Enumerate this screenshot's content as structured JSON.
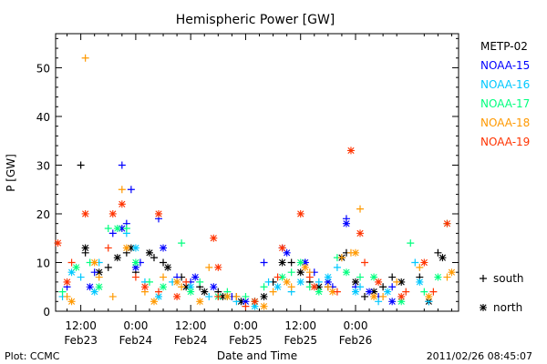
{
  "chart_data": {
    "type": "scatter",
    "title": "Hemispheric Power [GW]",
    "xlabel": "Date and Time",
    "ylabel": "P [GW]",
    "ylim": [
      0,
      57
    ],
    "y_ticks": [
      0,
      10,
      20,
      30,
      40,
      50
    ],
    "x_unit": "hours since Feb23 00:00",
    "xlim": [
      6.5,
      94.5
    ],
    "x_ticks": [
      {
        "x": 12,
        "time": "12:00",
        "date": "Feb23"
      },
      {
        "x": 24,
        "time": "0:00",
        "date": "Feb24"
      },
      {
        "x": 36,
        "time": "12:00",
        "date": "Feb24"
      },
      {
        "x": 48,
        "time": "0:00",
        "date": "Feb25"
      },
      {
        "x": 60,
        "time": "12:00",
        "date": "Feb25"
      },
      {
        "x": 72,
        "time": "0:00",
        "date": "Feb26"
      }
    ],
    "marker_legend": [
      {
        "symbol": "+",
        "label": "south"
      },
      {
        "symbol": "*",
        "label": "north"
      }
    ],
    "series": [
      {
        "name": "METP-02",
        "color": "#000000",
        "south": [
          [
            12,
            30
          ],
          [
            13,
            12
          ],
          [
            18,
            9
          ],
          [
            22,
            12
          ],
          [
            24,
            8
          ],
          [
            28,
            11
          ],
          [
            30,
            10
          ],
          [
            34,
            7
          ],
          [
            38,
            5
          ],
          [
            42,
            4
          ],
          [
            46,
            3
          ],
          [
            50,
            2
          ],
          [
            54,
            6
          ],
          [
            58,
            10
          ],
          [
            62,
            6
          ],
          [
            66,
            5
          ],
          [
            70,
            12
          ],
          [
            74,
            3
          ],
          [
            78,
            5
          ],
          [
            80,
            7
          ],
          [
            86,
            7
          ],
          [
            90,
            12
          ]
        ],
        "north": [
          [
            13,
            13
          ],
          [
            16,
            8
          ],
          [
            20,
            11
          ],
          [
            23,
            13
          ],
          [
            27,
            12
          ],
          [
            31,
            9
          ],
          [
            35,
            5
          ],
          [
            39,
            4
          ],
          [
            43,
            3
          ],
          [
            47,
            2
          ],
          [
            52,
            3
          ],
          [
            56,
            10
          ],
          [
            60,
            8
          ],
          [
            64,
            5
          ],
          [
            69,
            11
          ],
          [
            72,
            6
          ],
          [
            76,
            4
          ],
          [
            82,
            6
          ],
          [
            88,
            2
          ],
          [
            91,
            11
          ]
        ]
      },
      {
        "name": "NOAA-15",
        "color": "#0000ff",
        "south": [
          [
            9,
            5
          ],
          [
            15,
            8
          ],
          [
            19,
            16
          ],
          [
            21,
            30
          ],
          [
            22,
            18
          ],
          [
            23,
            25
          ],
          [
            25,
            10
          ],
          [
            29,
            19
          ],
          [
            33,
            7
          ],
          [
            36,
            6
          ],
          [
            45,
            3
          ],
          [
            52,
            10
          ],
          [
            56,
            13
          ],
          [
            61,
            10
          ],
          [
            63,
            8
          ],
          [
            67,
            5
          ],
          [
            70,
            19
          ],
          [
            72,
            5
          ],
          [
            77,
            3
          ],
          [
            80,
            5
          ]
        ],
        "north": [
          [
            14,
            5
          ],
          [
            21,
            17
          ],
          [
            24,
            9
          ],
          [
            30,
            13
          ],
          [
            37,
            7
          ],
          [
            41,
            5
          ],
          [
            48,
            2
          ],
          [
            57,
            12
          ],
          [
            61,
            10
          ],
          [
            66,
            6
          ],
          [
            70,
            18
          ],
          [
            75,
            4
          ],
          [
            80,
            2
          ]
        ]
      },
      {
        "name": "NOAA-16",
        "color": "#00c8ff",
        "south": [
          [
            8,
            3
          ],
          [
            12,
            7
          ],
          [
            16,
            10
          ],
          [
            22,
            16
          ],
          [
            26,
            6
          ],
          [
            32,
            6
          ],
          [
            40,
            3
          ],
          [
            46,
            2
          ],
          [
            53,
            6
          ],
          [
            58,
            4
          ],
          [
            64,
            6
          ],
          [
            68,
            9
          ],
          [
            73,
            5
          ],
          [
            77,
            2
          ],
          [
            85,
            10
          ],
          [
            88,
            2
          ]
        ],
        "north": [
          [
            10,
            8
          ],
          [
            15,
            4
          ],
          [
            24,
            13
          ],
          [
            29,
            3
          ],
          [
            36,
            5
          ],
          [
            44,
            3
          ],
          [
            50,
            1
          ],
          [
            55,
            5
          ],
          [
            60,
            6
          ],
          [
            66,
            7
          ],
          [
            72,
            4
          ],
          [
            79,
            4
          ],
          [
            86,
            6
          ]
        ]
      },
      {
        "name": "NOAA-17",
        "color": "#00ff7f",
        "south": [
          [
            8,
            4
          ],
          [
            14,
            10
          ],
          [
            18,
            17
          ],
          [
            22,
            17
          ],
          [
            27,
            6
          ],
          [
            34,
            14
          ],
          [
            38,
            6
          ],
          [
            44,
            4
          ],
          [
            48,
            3
          ],
          [
            52,
            5
          ],
          [
            58,
            8
          ],
          [
            62,
            5
          ],
          [
            68,
            11
          ],
          [
            73,
            7
          ],
          [
            84,
            14
          ],
          [
            87,
            4
          ],
          [
            92,
            18
          ]
        ],
        "north": [
          [
            11,
            9
          ],
          [
            16,
            5
          ],
          [
            20,
            17
          ],
          [
            24,
            10
          ],
          [
            30,
            5
          ],
          [
            36,
            4
          ],
          [
            42,
            3
          ],
          [
            50,
            2
          ],
          [
            56,
            7
          ],
          [
            60,
            10
          ],
          [
            64,
            4
          ],
          [
            70,
            8
          ],
          [
            76,
            7
          ],
          [
            82,
            2
          ],
          [
            90,
            7
          ]
        ]
      },
      {
        "name": "NOAA-18",
        "color": "#ff9900",
        "south": [
          [
            9,
            3
          ],
          [
            13,
            52
          ],
          [
            16,
            7
          ],
          [
            19,
            3
          ],
          [
            21,
            25
          ],
          [
            26,
            4
          ],
          [
            30,
            7
          ],
          [
            34,
            5
          ],
          [
            40,
            9
          ],
          [
            46,
            3
          ],
          [
            54,
            4
          ],
          [
            58,
            5
          ],
          [
            62,
            8
          ],
          [
            66,
            5
          ],
          [
            69,
            11
          ],
          [
            71,
            12
          ],
          [
            73,
            21
          ],
          [
            78,
            3
          ],
          [
            81,
            6
          ],
          [
            86,
            9
          ],
          [
            92,
            7
          ]
        ],
        "north": [
          [
            10,
            2
          ],
          [
            15,
            10
          ],
          [
            22,
            13
          ],
          [
            28,
            2
          ],
          [
            33,
            6
          ],
          [
            38,
            2
          ],
          [
            44,
            3
          ],
          [
            52,
            1
          ],
          [
            57,
            6
          ],
          [
            61,
            9
          ],
          [
            67,
            4
          ],
          [
            72,
            12
          ],
          [
            76,
            3
          ],
          [
            88,
            3
          ],
          [
            93,
            8
          ]
        ]
      },
      {
        "name": "NOAA-19",
        "color": "#ff3300",
        "south": [
          [
            10,
            10
          ],
          [
            18,
            13
          ],
          [
            24,
            7
          ],
          [
            29,
            4
          ],
          [
            35,
            6
          ],
          [
            42,
            3
          ],
          [
            48,
            1
          ],
          [
            55,
            7
          ],
          [
            62,
            7
          ],
          [
            68,
            4
          ],
          [
            74,
            10
          ],
          [
            83,
            4
          ],
          [
            89,
            4
          ]
        ],
        "north": [
          [
            7,
            14
          ],
          [
            9,
            6
          ],
          [
            13,
            20
          ],
          [
            19,
            20
          ],
          [
            21,
            22
          ],
          [
            26,
            5
          ],
          [
            29,
            20
          ],
          [
            33,
            3
          ],
          [
            41,
            15
          ],
          [
            42,
            9
          ],
          [
            50,
            2
          ],
          [
            56,
            13
          ],
          [
            60,
            20
          ],
          [
            63,
            5
          ],
          [
            71,
            33
          ],
          [
            73,
            16
          ],
          [
            77,
            6
          ],
          [
            82,
            3
          ],
          [
            87,
            10
          ],
          [
            92,
            18
          ]
        ]
      }
    ]
  },
  "footer": {
    "credit": "Plot: CCMC",
    "timestamp": "2011/02/26 08:45:07"
  }
}
